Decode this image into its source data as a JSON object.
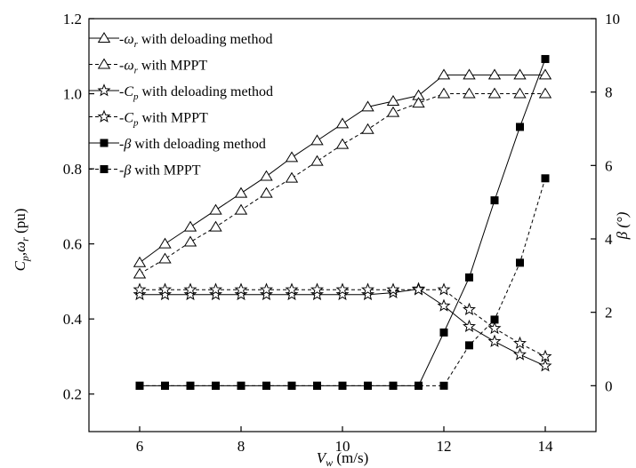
{
  "chart_data": {
    "type": "line",
    "x_axis": {
      "label_main": "V",
      "label_sub": "w",
      "label_unit": " (m/s)",
      "range": [
        5,
        15
      ],
      "ticks": [
        6,
        8,
        10,
        12,
        14
      ],
      "tick_labels": [
        "6",
        "8",
        "10",
        "12",
        "14"
      ]
    },
    "y_left": {
      "label": "C_p, ω_r (pu)",
      "label_parts": [
        "C",
        "p",
        ",ω",
        "r",
        " (pu)"
      ],
      "range": [
        0.1,
        1.2
      ],
      "ticks": [
        0.2,
        0.4,
        0.6,
        0.8,
        1.0,
        1.2
      ],
      "tick_labels": [
        "0.2",
        "0.4",
        "0.6",
        "0.8",
        "1.0",
        "1.2"
      ]
    },
    "y_right": {
      "label": "β (°)",
      "label_text": "β (°)",
      "range": [
        -1.25,
        10
      ],
      "ticks": [
        0,
        2,
        4,
        6,
        8,
        10
      ],
      "tick_labels": [
        "0",
        "2",
        "4",
        "6",
        "8",
        "10"
      ]
    },
    "x": [
      6,
      6.5,
      7,
      7.5,
      8,
      8.5,
      9,
      9.5,
      10,
      10.5,
      11,
      11.5,
      12,
      12.5,
      13,
      13.5,
      14
    ],
    "series": [
      {
        "name": "-ω_r with deloading method",
        "legend_parts": [
          "-ω",
          "r",
          " with deloading method"
        ],
        "axis": "left",
        "marker": "triangle",
        "dash": "solid",
        "values": [
          0.55,
          0.6,
          0.645,
          0.69,
          0.735,
          0.78,
          0.83,
          0.875,
          0.92,
          0.965,
          0.98,
          0.995,
          1.05,
          1.05,
          1.05,
          1.05,
          1.05
        ]
      },
      {
        "name": "-ω_r with MPPT",
        "legend_parts": [
          "-ω",
          "r",
          " with MPPT"
        ],
        "axis": "left",
        "marker": "triangle",
        "dash": "dashed",
        "values": [
          0.52,
          0.56,
          0.605,
          0.645,
          0.69,
          0.735,
          0.775,
          0.82,
          0.865,
          0.905,
          0.95,
          0.975,
          1.0,
          1.0,
          1.0,
          1.0,
          1.0
        ]
      },
      {
        "name": "-C_p with deloading method",
        "legend_parts": [
          "-C",
          "p",
          " with deloading method"
        ],
        "axis": "left",
        "marker": "star",
        "dash": "solid",
        "values": [
          0.465,
          0.465,
          0.465,
          0.465,
          0.465,
          0.465,
          0.465,
          0.465,
          0.465,
          0.465,
          0.47,
          0.48,
          0.435,
          0.38,
          0.34,
          0.305,
          0.275
        ]
      },
      {
        "name": "-C_p with MPPT",
        "legend_parts": [
          "-C",
          "p",
          " with MPPT"
        ],
        "axis": "left",
        "marker": "star",
        "dash": "dashed",
        "values": [
          0.478,
          0.478,
          0.478,
          0.478,
          0.478,
          0.478,
          0.478,
          0.478,
          0.478,
          0.478,
          0.478,
          0.478,
          0.478,
          0.425,
          0.375,
          0.335,
          0.3
        ]
      },
      {
        "name": "-β with deloading method",
        "legend_parts": [
          "-β",
          "",
          " with deloading method"
        ],
        "axis": "right",
        "marker": "square",
        "dash": "solid",
        "values": [
          0,
          0,
          0,
          0,
          0,
          0,
          0,
          0,
          0,
          0,
          0,
          0,
          1.45,
          2.95,
          5.05,
          7.05,
          8.9
        ]
      },
      {
        "name": "-β with MPPT",
        "legend_parts": [
          "-β",
          "",
          " with MPPT"
        ],
        "axis": "right",
        "marker": "square",
        "dash": "dashed",
        "values": [
          0,
          0,
          0,
          0,
          0,
          0,
          0,
          0,
          0,
          0,
          0,
          0,
          0,
          1.1,
          1.8,
          3.35,
          5.65
        ]
      }
    ],
    "grid": false,
    "legend_position": "top-left"
  }
}
